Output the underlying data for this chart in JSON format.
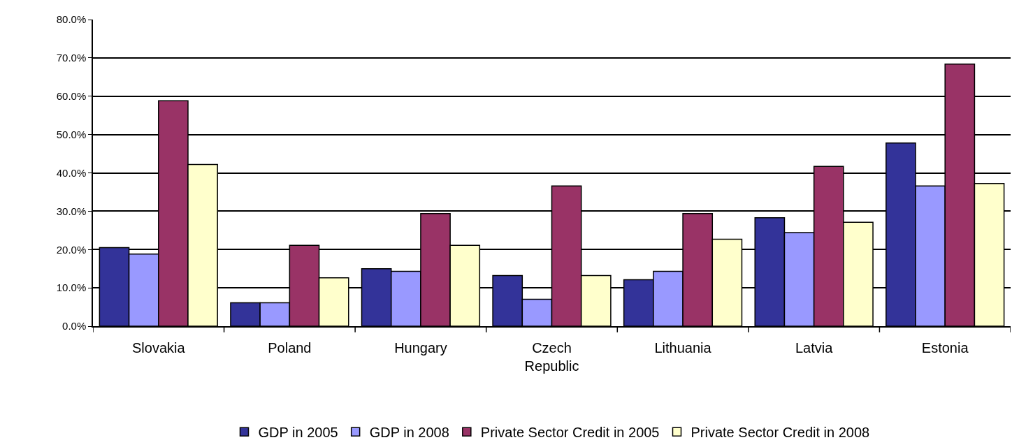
{
  "chart_data": {
    "type": "bar",
    "categories": [
      "Slovakia",
      "Poland",
      "Hungary",
      "Czech Republic",
      "Lithuania",
      "Latvia",
      "Estonia"
    ],
    "series": [
      {
        "name": "GDP in 2005",
        "color": "#333399",
        "values": [
          20.5,
          6.1,
          15.0,
          13.2,
          12.1,
          28.3,
          47.8
        ]
      },
      {
        "name": "GDP in 2008",
        "color": "#9999ff",
        "values": [
          18.8,
          6.1,
          14.3,
          7.0,
          14.3,
          24.4,
          36.6
        ]
      },
      {
        "name": "Private Sector Credit in 2005",
        "color": "#993366",
        "values": [
          58.8,
          21.1,
          29.4,
          36.6,
          29.4,
          41.7,
          68.4
        ]
      },
      {
        "name": "Private Sector Credit in 2008",
        "color": "#ffffcc",
        "values": [
          42.2,
          12.6,
          21.1,
          13.2,
          22.7,
          27.1,
          37.2
        ]
      }
    ],
    "ylim": [
      0,
      80
    ],
    "yticks": [
      {
        "value": 0,
        "label": "0.0%"
      },
      {
        "value": 10,
        "label": "10.0%"
      },
      {
        "value": 20,
        "label": "20.0%"
      },
      {
        "value": 30,
        "label": "30.0%"
      },
      {
        "value": 40,
        "label": "40.0%"
      },
      {
        "value": 50,
        "label": "50.0%"
      },
      {
        "value": 60,
        "label": "60.0%"
      },
      {
        "value": 70,
        "label": "70.0%"
      },
      {
        "value": 80,
        "label": "80.0%"
      }
    ],
    "grid": "y",
    "legend": "bottom"
  }
}
